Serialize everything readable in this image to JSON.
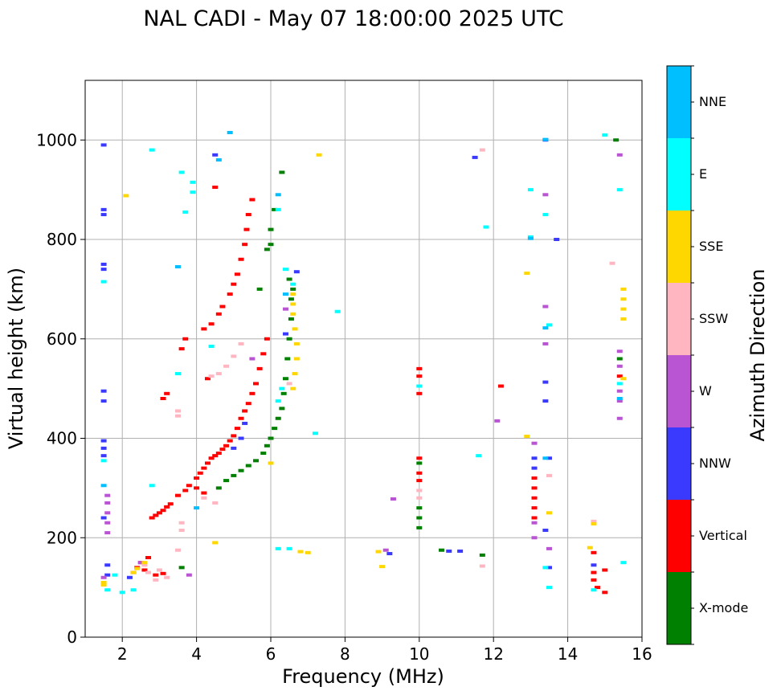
{
  "chart_data": {
    "type": "scatter",
    "title": "NAL CADI - May 07 18:00:00 2025 UTC",
    "xlabel": "Frequency (MHz)",
    "ylabel": "Virtual height (km)",
    "xlim": [
      1,
      16
    ],
    "ylim": [
      0,
      1120
    ],
    "xticks": [
      2,
      4,
      6,
      8,
      10,
      12,
      14,
      16
    ],
    "yticks": [
      0,
      200,
      400,
      600,
      800,
      1000
    ],
    "grid": true,
    "colorbar": {
      "label": "Azimuth Direction",
      "categories": [
        "X-mode",
        "Vertical",
        "NNW",
        "W",
        "SSW",
        "SSE",
        "E",
        "NNE"
      ],
      "colors": {
        "X-mode": "#008000",
        "Vertical": "#ff0000",
        "NNW": "#3a3aff",
        "W": "#b955d3",
        "SSW": "#ffb6c1",
        "SSE": "#ffd700",
        "E": "#00ffff",
        "NNE": "#00bfff"
      }
    },
    "series": [
      {
        "name": "Vertical",
        "points": [
          [
            2.8,
            240
          ],
          [
            2.9,
            245
          ],
          [
            3.0,
            250
          ],
          [
            3.1,
            255
          ],
          [
            3.2,
            262
          ],
          [
            3.3,
            268
          ],
          [
            3.5,
            285
          ],
          [
            3.7,
            295
          ],
          [
            3.8,
            305
          ],
          [
            4.0,
            320
          ],
          [
            4.1,
            330
          ],
          [
            4.2,
            340
          ],
          [
            4.3,
            350
          ],
          [
            4.4,
            360
          ],
          [
            4.5,
            365
          ],
          [
            4.6,
            370
          ],
          [
            4.7,
            378
          ],
          [
            4.8,
            385
          ],
          [
            4.9,
            395
          ],
          [
            5.0,
            405
          ],
          [
            5.1,
            420
          ],
          [
            5.2,
            440
          ],
          [
            5.3,
            455
          ],
          [
            5.4,
            470
          ],
          [
            5.5,
            490
          ],
          [
            5.6,
            510
          ],
          [
            5.7,
            540
          ],
          [
            5.8,
            570
          ],
          [
            5.9,
            600
          ],
          [
            4.3,
            520
          ],
          [
            4.2,
            620
          ],
          [
            4.4,
            630
          ],
          [
            4.6,
            650
          ],
          [
            4.7,
            665
          ],
          [
            4.9,
            690
          ],
          [
            5.0,
            710
          ],
          [
            5.1,
            730
          ],
          [
            5.2,
            760
          ],
          [
            5.3,
            790
          ],
          [
            5.35,
            820
          ],
          [
            5.4,
            850
          ],
          [
            5.5,
            880
          ],
          [
            3.6,
            580
          ],
          [
            3.7,
            600
          ],
          [
            3.2,
            490
          ],
          [
            3.1,
            480
          ],
          [
            2.3,
            130
          ],
          [
            2.4,
            140
          ],
          [
            2.5,
            150
          ],
          [
            2.6,
            135
          ],
          [
            2.7,
            160
          ],
          [
            2.9,
            125
          ],
          [
            3.1,
            128
          ],
          [
            10.0,
            540
          ],
          [
            10.0,
            525
          ],
          [
            10.0,
            490
          ],
          [
            10.0,
            360
          ],
          [
            10.0,
            330
          ],
          [
            10.0,
            315
          ],
          [
            12.2,
            505
          ],
          [
            13.1,
            320
          ],
          [
            13.1,
            300
          ],
          [
            13.1,
            280
          ],
          [
            13.1,
            260
          ],
          [
            13.1,
            240
          ],
          [
            14.7,
            170
          ],
          [
            14.7,
            130
          ],
          [
            14.7,
            115
          ],
          [
            14.8,
            100
          ],
          [
            15.0,
            135
          ],
          [
            15.0,
            90
          ],
          [
            15.4,
            525
          ],
          [
            4.5,
            905
          ],
          [
            4.2,
            290
          ],
          [
            4.0,
            300
          ]
        ]
      },
      {
        "name": "X-mode",
        "points": [
          [
            4.6,
            300
          ],
          [
            4.8,
            315
          ],
          [
            5.0,
            325
          ],
          [
            5.2,
            335
          ],
          [
            5.4,
            345
          ],
          [
            5.6,
            355
          ],
          [
            5.8,
            370
          ],
          [
            5.9,
            385
          ],
          [
            6.0,
            400
          ],
          [
            6.1,
            420
          ],
          [
            6.2,
            440
          ],
          [
            6.3,
            460
          ],
          [
            6.35,
            490
          ],
          [
            6.4,
            520
          ],
          [
            6.45,
            560
          ],
          [
            6.5,
            600
          ],
          [
            6.55,
            640
          ],
          [
            6.55,
            680
          ],
          [
            6.6,
            700
          ],
          [
            6.5,
            720
          ],
          [
            6.0,
            820
          ],
          [
            6.0,
            790
          ],
          [
            5.9,
            780
          ],
          [
            5.7,
            700
          ],
          [
            6.1,
            860
          ],
          [
            6.3,
            935
          ],
          [
            10.0,
            260
          ],
          [
            10.0,
            240
          ],
          [
            10.0,
            220
          ],
          [
            10.0,
            350
          ],
          [
            11.7,
            165
          ],
          [
            10.6,
            175
          ],
          [
            15.3,
            1000
          ],
          [
            15.4,
            560
          ],
          [
            3.6,
            140
          ]
        ]
      },
      {
        "name": "NNW",
        "points": [
          [
            1.5,
            990
          ],
          [
            1.5,
            860
          ],
          [
            1.5,
            850
          ],
          [
            1.5,
            750
          ],
          [
            1.5,
            740
          ],
          [
            1.5,
            495
          ],
          [
            1.5,
            475
          ],
          [
            1.5,
            395
          ],
          [
            1.5,
            380
          ],
          [
            1.5,
            365
          ],
          [
            1.5,
            240
          ],
          [
            1.6,
            145
          ],
          [
            1.6,
            125
          ],
          [
            4.5,
            970
          ],
          [
            5.0,
            380
          ],
          [
            5.2,
            400
          ],
          [
            5.3,
            430
          ],
          [
            6.7,
            735
          ],
          [
            6.4,
            610
          ],
          [
            9.2,
            168
          ],
          [
            10.8,
            173
          ],
          [
            11.1,
            173
          ],
          [
            11.5,
            965
          ],
          [
            13.4,
            1000
          ],
          [
            13.7,
            800
          ],
          [
            13.4,
            513
          ],
          [
            13.4,
            475
          ],
          [
            13.1,
            360
          ],
          [
            13.1,
            340
          ],
          [
            13.5,
            360
          ],
          [
            13.4,
            215
          ],
          [
            13.5,
            140
          ],
          [
            14.7,
            145
          ],
          [
            2.2,
            120
          ]
        ]
      },
      {
        "name": "W",
        "points": [
          [
            1.5,
            120
          ],
          [
            1.6,
            285
          ],
          [
            1.6,
            270
          ],
          [
            1.6,
            250
          ],
          [
            1.6,
            230
          ],
          [
            1.6,
            210
          ],
          [
            2.5,
            150
          ],
          [
            3.8,
            125
          ],
          [
            5.5,
            560
          ],
          [
            6.4,
            660
          ],
          [
            9.3,
            278
          ],
          [
            9.1,
            175
          ],
          [
            13.4,
            890
          ],
          [
            13.4,
            665
          ],
          [
            13.4,
            590
          ],
          [
            13.1,
            390
          ],
          [
            13.1,
            230
          ],
          [
            13.1,
            200
          ],
          [
            13.5,
            178
          ],
          [
            15.4,
            970
          ],
          [
            15.4,
            575
          ],
          [
            15.4,
            545
          ],
          [
            15.4,
            495
          ],
          [
            15.4,
            475
          ],
          [
            15.4,
            440
          ],
          [
            12.1,
            435
          ]
        ]
      },
      {
        "name": "SSW",
        "points": [
          [
            2.6,
            145
          ],
          [
            2.7,
            130
          ],
          [
            2.9,
            115
          ],
          [
            3.0,
            135
          ],
          [
            3.2,
            120
          ],
          [
            3.5,
            175
          ],
          [
            3.6,
            230
          ],
          [
            3.6,
            215
          ],
          [
            3.5,
            455
          ],
          [
            3.5,
            445
          ],
          [
            4.4,
            525
          ],
          [
            4.6,
            530
          ],
          [
            4.8,
            545
          ],
          [
            5.0,
            565
          ],
          [
            5.2,
            590
          ],
          [
            4.5,
            270
          ],
          [
            4.2,
            280
          ],
          [
            10.0,
            295
          ],
          [
            10.0,
            280
          ],
          [
            11.7,
            980
          ],
          [
            11.7,
            143
          ],
          [
            13.5,
            325
          ],
          [
            14.7,
            233
          ],
          [
            15.2,
            752
          ],
          [
            6.5,
            510
          ]
        ]
      },
      {
        "name": "SSE",
        "points": [
          [
            1.5,
            110
          ],
          [
            1.5,
            105
          ],
          [
            2.1,
            888
          ],
          [
            2.3,
            130
          ],
          [
            2.4,
            138
          ],
          [
            2.6,
            150
          ],
          [
            4.5,
            190
          ],
          [
            6.6,
            690
          ],
          [
            6.6,
            670
          ],
          [
            6.6,
            650
          ],
          [
            6.65,
            620
          ],
          [
            6.7,
            590
          ],
          [
            6.7,
            560
          ],
          [
            6.65,
            530
          ],
          [
            6.6,
            500
          ],
          [
            6.0,
            350
          ],
          [
            6.8,
            172
          ],
          [
            7.0,
            170
          ],
          [
            7.3,
            970
          ],
          [
            8.9,
            172
          ],
          [
            9.0,
            142
          ],
          [
            12.9,
            404
          ],
          [
            12.9,
            732
          ],
          [
            13.5,
            250
          ],
          [
            14.7,
            228
          ],
          [
            14.6,
            180
          ],
          [
            15.5,
            700
          ],
          [
            15.5,
            680
          ],
          [
            15.5,
            660
          ],
          [
            15.5,
            640
          ],
          [
            15.5,
            520
          ]
        ]
      },
      {
        "name": "E",
        "points": [
          [
            1.5,
            715
          ],
          [
            1.5,
            355
          ],
          [
            1.6,
            95
          ],
          [
            1.8,
            125
          ],
          [
            2.0,
            90
          ],
          [
            2.3,
            95
          ],
          [
            2.8,
            980
          ],
          [
            2.8,
            305
          ],
          [
            3.7,
            855
          ],
          [
            3.6,
            935
          ],
          [
            3.9,
            915
          ],
          [
            3.9,
            895
          ],
          [
            4.4,
            585
          ],
          [
            6.2,
            860
          ],
          [
            6.4,
            740
          ],
          [
            6.6,
            710
          ],
          [
            6.3,
            500
          ],
          [
            6.2,
            475
          ],
          [
            7.2,
            410
          ],
          [
            7.8,
            655
          ],
          [
            6.2,
            178
          ],
          [
            6.5,
            178
          ],
          [
            10.0,
            505
          ],
          [
            11.6,
            365
          ],
          [
            11.8,
            825
          ],
          [
            13.0,
            900
          ],
          [
            13.0,
            805
          ],
          [
            13.4,
            850
          ],
          [
            13.5,
            628
          ],
          [
            13.4,
            140
          ],
          [
            13.5,
            100
          ],
          [
            15.0,
            1010
          ],
          [
            15.4,
            900
          ],
          [
            15.4,
            510
          ],
          [
            15.5,
            150
          ],
          [
            14.7,
            95
          ],
          [
            3.5,
            530
          ]
        ]
      },
      {
        "name": "NNE",
        "points": [
          [
            4.9,
            1015
          ],
          [
            4.6,
            960
          ],
          [
            3.5,
            745
          ],
          [
            1.5,
            305
          ],
          [
            6.2,
            890
          ],
          [
            6.4,
            690
          ],
          [
            4.0,
            260
          ],
          [
            13.4,
            1001
          ],
          [
            13.4,
            622
          ],
          [
            13.4,
            360
          ],
          [
            13.0,
            802
          ],
          [
            15.4,
            480
          ]
        ]
      }
    ]
  }
}
